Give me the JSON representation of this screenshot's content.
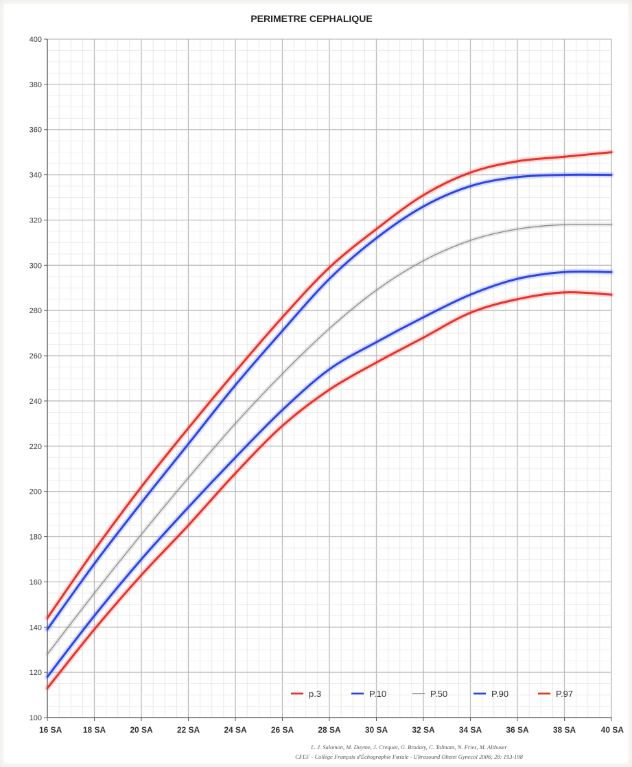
{
  "chart_data": {
    "type": "line",
    "title": "PERIMETRE CEPHALIQUE",
    "xlabel": "",
    "ylabel": "",
    "x": [
      16,
      18,
      20,
      22,
      24,
      26,
      28,
      30,
      32,
      34,
      36,
      38,
      40
    ],
    "x_tick_labels": [
      "16 SA",
      "18 SA",
      "20 SA",
      "22 SA",
      "24 SA",
      "26 SA",
      "28 SA",
      "30 SA",
      "32 SA",
      "34 SA",
      "36 SA",
      "38 SA",
      "40 SA"
    ],
    "xlim": [
      16,
      40
    ],
    "ylim": [
      100,
      400
    ],
    "y_ticks": [
      100,
      120,
      140,
      160,
      180,
      200,
      220,
      240,
      260,
      280,
      300,
      320,
      340,
      360,
      380,
      400
    ],
    "grid": true,
    "legend_position": "bottom-right",
    "series": [
      {
        "name": "p.3",
        "color": "#e8312a",
        "values": [
          113,
          139,
          163,
          185,
          208,
          229,
          245,
          257,
          268,
          279,
          285,
          288,
          287
        ]
      },
      {
        "name": "P.10",
        "color": "#2b44e6",
        "values": [
          118,
          145,
          170,
          193,
          215,
          236,
          254,
          266,
          277,
          287,
          294,
          297,
          297
        ]
      },
      {
        "name": "P.50",
        "color": "#8a8a8a",
        "values": [
          128,
          155,
          181,
          206,
          230,
          252,
          272,
          289,
          302,
          311,
          316,
          318,
          318
        ]
      },
      {
        "name": "P.90",
        "color": "#2b44e6",
        "values": [
          139,
          168,
          195,
          221,
          247,
          271,
          294,
          312,
          326,
          335,
          339,
          340,
          340
        ]
      },
      {
        "name": "P.97",
        "color": "#e8312a",
        "values": [
          144,
          174,
          202,
          228,
          253,
          277,
          299,
          316,
          331,
          341,
          346,
          348,
          350
        ]
      }
    ],
    "credits": [
      "L. J. Salomon, M. Duyme, J. Crequat, G. Brodaty, C. Talmant, N. Fries, M. Althuser",
      "CFEF - Collège Français d'Échographie Fœtale - Ultrasound Obstet Gynecol 2006; 28: 193-198"
    ]
  }
}
